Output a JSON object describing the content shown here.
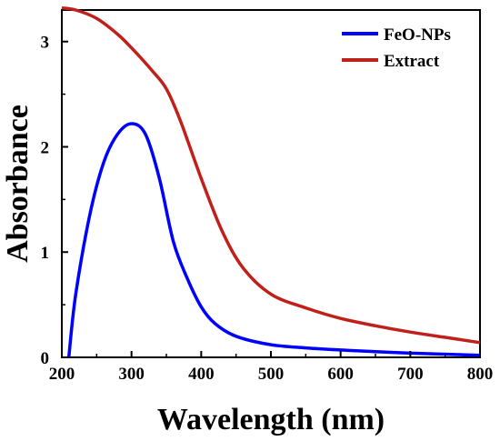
{
  "chart_data": {
    "type": "line",
    "xlabel": "Wavelength (nm)",
    "ylabel": "Absorbance",
    "xlim": [
      200,
      800
    ],
    "ylim": [
      0,
      3.3
    ],
    "xticks": [
      200,
      300,
      400,
      500,
      600,
      700,
      800
    ],
    "yticks": [
      0,
      1,
      2,
      3
    ],
    "grid": false,
    "legend_position": "top-right",
    "series": [
      {
        "name": "FeO-NPs",
        "color": "#0000ff",
        "points": [
          [
            210,
            0
          ],
          [
            220,
            0.6
          ],
          [
            240,
            1.35
          ],
          [
            260,
            1.85
          ],
          [
            280,
            2.12
          ],
          [
            300,
            2.22
          ],
          [
            320,
            2.12
          ],
          [
            340,
            1.7
          ],
          [
            360,
            1.1
          ],
          [
            380,
            0.75
          ],
          [
            400,
            0.48
          ],
          [
            420,
            0.32
          ],
          [
            450,
            0.2
          ],
          [
            500,
            0.12
          ],
          [
            550,
            0.09
          ],
          [
            600,
            0.07
          ],
          [
            700,
            0.04
          ],
          [
            800,
            0.02
          ]
        ]
      },
      {
        "name": "Extract",
        "color": "#c0201a",
        "points": [
          [
            200,
            3.32
          ],
          [
            220,
            3.3
          ],
          [
            250,
            3.22
          ],
          [
            280,
            3.07
          ],
          [
            300,
            2.94
          ],
          [
            330,
            2.72
          ],
          [
            350,
            2.55
          ],
          [
            370,
            2.25
          ],
          [
            400,
            1.7
          ],
          [
            430,
            1.2
          ],
          [
            460,
            0.85
          ],
          [
            500,
            0.6
          ],
          [
            550,
            0.47
          ],
          [
            600,
            0.37
          ],
          [
            650,
            0.3
          ],
          [
            700,
            0.24
          ],
          [
            750,
            0.19
          ],
          [
            800,
            0.14
          ]
        ]
      }
    ]
  }
}
